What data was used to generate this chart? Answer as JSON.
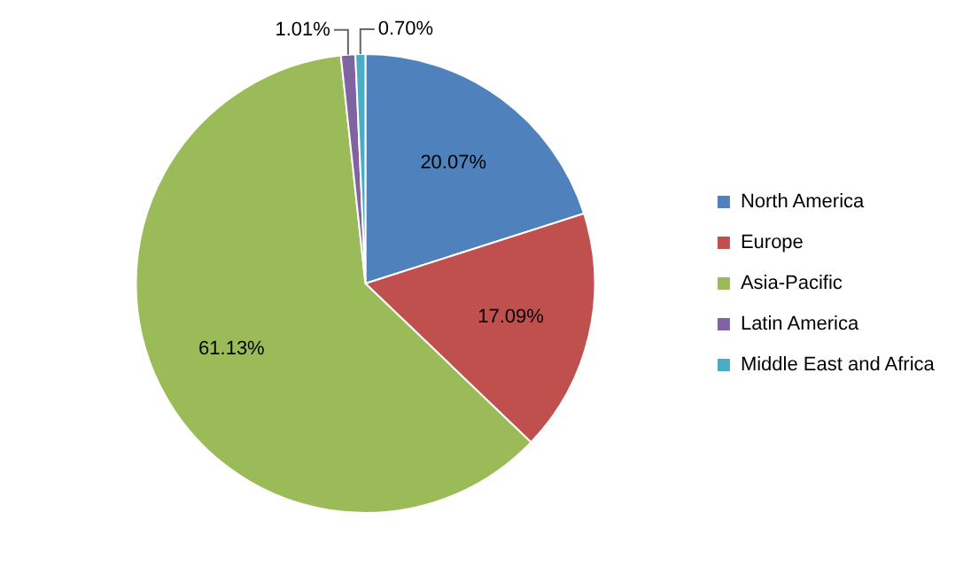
{
  "chart_data": {
    "type": "pie",
    "categories": [
      "North America",
      "Europe",
      "Asia-Pacific",
      "Latin America",
      "Middle East and Africa"
    ],
    "values": [
      20.07,
      17.09,
      61.13,
      1.01,
      0.7
    ],
    "colors": [
      "#4f81bd",
      "#c0504d",
      "#9bbb59",
      "#8064a2",
      "#4bacc6"
    ],
    "value_labels": [
      "20.07%",
      "17.09%",
      "61.13%",
      "1.01%",
      "0.70%"
    ],
    "legend": "right"
  }
}
